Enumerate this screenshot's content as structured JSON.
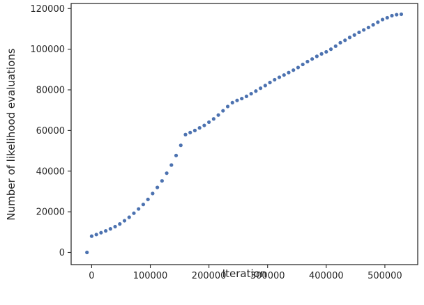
{
  "chart_data": {
    "type": "scatter",
    "title": "",
    "xlabel": "Iteration",
    "ylabel": "Number of likelihood evaluations",
    "xlim": [
      -35000,
      556000
    ],
    "ylim": [
      -6000,
      122500
    ],
    "xticks": [
      0,
      100000,
      200000,
      300000,
      400000,
      500000
    ],
    "xtick_labels": [
      "0",
      "100000",
      "200000",
      "300000",
      "400000",
      "500000"
    ],
    "yticks": [
      0,
      20000,
      40000,
      60000,
      80000,
      100000,
      120000
    ],
    "ytick_labels": [
      "0",
      "20000",
      "40000",
      "60000",
      "80000",
      "100000",
      "120000"
    ],
    "grid": false,
    "marker_color": "#4c72b0",
    "series": [
      {
        "x": [
          -8000,
          0,
          8000,
          16000,
          24000,
          32000,
          40000,
          48000,
          56000,
          64000,
          72000,
          80000,
          88000,
          96000,
          104000,
          112000,
          120000,
          128000,
          136000,
          144000,
          152000,
          160000,
          168000,
          176000,
          184000,
          192000,
          200000,
          208000,
          216000,
          224000,
          232000,
          240000,
          248000,
          256000,
          264000,
          272000,
          280000,
          288000,
          296000,
          304000,
          312000,
          320000,
          328000,
          336000,
          344000,
          352000,
          360000,
          368000,
          376000,
          384000,
          392000,
          400000,
          408000,
          416000,
          424000,
          432000,
          440000,
          448000,
          456000,
          464000,
          472000,
          480000,
          488000,
          496000,
          504000,
          512000,
          520000,
          528000
        ],
        "y": [
          0,
          8000,
          8800,
          9700,
          10600,
          11600,
          12700,
          14000,
          15600,
          17300,
          19300,
          21400,
          23600,
          26100,
          29000,
          32000,
          35200,
          39000,
          43000,
          47700,
          52700,
          58000,
          59000,
          60000,
          61300,
          62500,
          64100,
          65700,
          67600,
          69700,
          71800,
          73700,
          74800,
          75700,
          76800,
          78100,
          79400,
          80800,
          82100,
          83600,
          85000,
          86200,
          87300,
          88500,
          89700,
          91000,
          92500,
          93900,
          95200,
          96500,
          97700,
          98700,
          100000,
          101500,
          103200,
          104400,
          105800,
          107000,
          108300,
          109500,
          110700,
          112000,
          113300,
          114600,
          115500,
          116500,
          117000,
          117200
        ]
      }
    ]
  }
}
